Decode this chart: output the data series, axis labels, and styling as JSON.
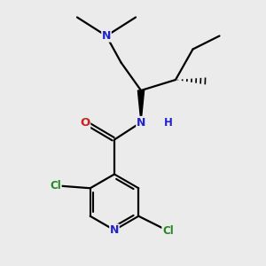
{
  "background_color": "#ebebeb",
  "fig_width": 3.0,
  "fig_height": 3.0,
  "dpi": 100,
  "xmin": 0.0,
  "xmax": 10.0,
  "ymin": 0.0,
  "ymax": 10.0,
  "colors": {
    "bond": "#000000",
    "N": "#2222cc",
    "O": "#cc2222",
    "Cl": "#228822",
    "C": "#000000"
  }
}
